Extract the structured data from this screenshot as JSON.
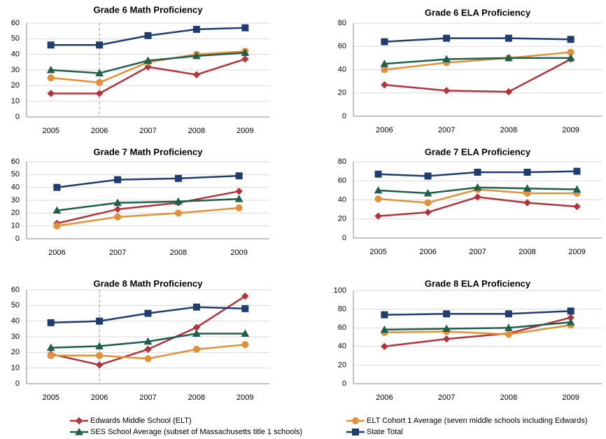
{
  "legend": [
    {
      "name": "Edwards Middle School (ELT)",
      "color": "#b2333a",
      "marker": "diamond"
    },
    {
      "name": "ELT Cohort 1 Average (seven middle schools including Edwards)",
      "color": "#e0913a",
      "marker": "circle"
    },
    {
      "name": "SES School Average (subset of Massachusetts title 1 schools)",
      "color": "#1e5e4a",
      "marker": "triangle"
    },
    {
      "name": "State Total",
      "color": "#1f3d6e",
      "marker": "square"
    }
  ],
  "chart_data": [
    {
      "type": "line",
      "title": "Grade 6 Math Proficiency",
      "categories": [
        "2005",
        "2006",
        "2007",
        "2008",
        "2009"
      ],
      "series": [
        {
          "values": [
            15,
            15,
            32,
            27,
            37
          ]
        },
        {
          "values": [
            25,
            22,
            35,
            40,
            42
          ]
        },
        {
          "values": [
            30,
            28,
            36,
            39,
            41
          ]
        },
        {
          "values": [
            46,
            46,
            52,
            56,
            57
          ]
        }
      ],
      "ylim": [
        0,
        60
      ],
      "yticks": [
        0,
        10,
        20,
        30,
        40,
        50,
        60
      ],
      "grid": true,
      "vline_category": "2006"
    },
    {
      "type": "line",
      "title": "Grade 6 ELA Proficiency",
      "categories": [
        "2006",
        "2007",
        "2008",
        "2009"
      ],
      "series": [
        {
          "values": [
            27,
            22,
            21,
            49
          ]
        },
        {
          "values": [
            40,
            46,
            50,
            55
          ]
        },
        {
          "values": [
            45,
            49,
            50,
            50
          ]
        },
        {
          "values": [
            64,
            67,
            67,
            66
          ]
        }
      ],
      "ylim": [
        0,
        80
      ],
      "yticks": [
        0,
        20,
        40,
        60,
        80
      ],
      "grid": true
    },
    {
      "type": "line",
      "title": "Grade 7 Math Proficiency",
      "categories": [
        "2006",
        "2007",
        "2008",
        "2009"
      ],
      "series": [
        {
          "values": [
            12,
            23,
            28,
            37
          ]
        },
        {
          "values": [
            10,
            17,
            20,
            24
          ]
        },
        {
          "values": [
            22,
            28,
            29,
            31
          ]
        },
        {
          "values": [
            40,
            46,
            47,
            49
          ]
        }
      ],
      "ylim": [
        0,
        60
      ],
      "yticks": [
        0,
        10,
        20,
        30,
        40,
        50,
        60
      ],
      "grid": true
    },
    {
      "type": "line",
      "title": "Grade 7 ELA Proficiency",
      "categories": [
        "2005",
        "2006",
        "2007",
        "2008",
        "2009"
      ],
      "series": [
        {
          "values": [
            23,
            27,
            43,
            37,
            33
          ]
        },
        {
          "values": [
            41,
            37,
            51,
            47,
            47
          ]
        },
        {
          "values": [
            50,
            47,
            53,
            52,
            51
          ]
        },
        {
          "values": [
            67,
            65,
            69,
            69,
            70
          ]
        }
      ],
      "ylim": [
        0,
        80
      ],
      "yticks": [
        0,
        20,
        40,
        60,
        80
      ],
      "grid": true
    },
    {
      "type": "line",
      "title": "Grade 8 Math Proficiency",
      "categories": [
        "2005",
        "2006",
        "2007",
        "2008",
        "2009"
      ],
      "series": [
        {
          "values": [
            19,
            12,
            22,
            36,
            56
          ]
        },
        {
          "values": [
            18,
            18,
            16,
            22,
            25
          ]
        },
        {
          "values": [
            23,
            24,
            27,
            32,
            32
          ]
        },
        {
          "values": [
            39,
            40,
            45,
            49,
            48
          ]
        }
      ],
      "ylim": [
        0,
        60
      ],
      "yticks": [
        0,
        10,
        20,
        30,
        40,
        50,
        60
      ],
      "grid": true,
      "vline_category": "2006"
    },
    {
      "type": "line",
      "title": "Grade 8 ELA Proficiency",
      "categories": [
        "2006",
        "2007",
        "2008",
        "2009"
      ],
      "series": [
        {
          "values": [
            40,
            48,
            54,
            71
          ]
        },
        {
          "values": [
            55,
            56,
            53,
            63
          ]
        },
        {
          "values": [
            58,
            59,
            60,
            66
          ]
        },
        {
          "values": [
            74,
            75,
            75,
            78
          ]
        }
      ],
      "ylim": [
        0,
        100
      ],
      "yticks": [
        0,
        20,
        40,
        60,
        80,
        100
      ],
      "grid": true
    }
  ]
}
